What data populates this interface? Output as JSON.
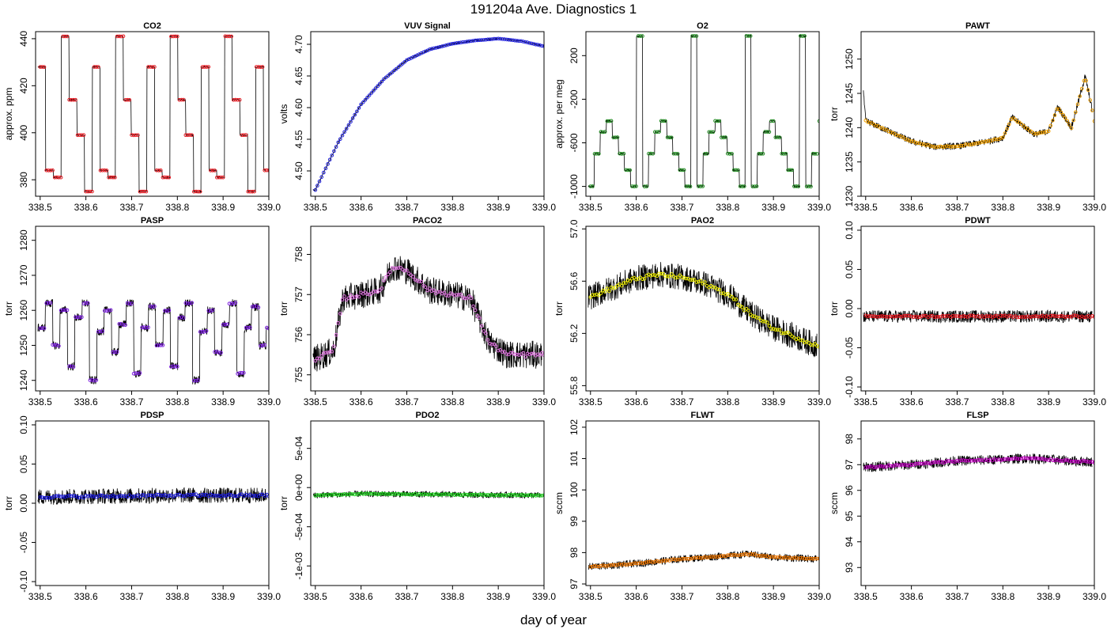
{
  "title": "191204a   Ave. Diagnostics 1",
  "xlabel": "day of year",
  "chart_data": [
    {
      "type": "line",
      "title": "CO2",
      "ylabel": "approx. ppm",
      "xlim": [
        338.49,
        339.0
      ],
      "ylim": [
        373,
        443
      ],
      "xticks": [
        338.5,
        338.6,
        338.7,
        338.8,
        338.9,
        339.0
      ],
      "xtick_labels": [
        "338.5",
        "338.6",
        "338.7",
        "338.8",
        "338.9",
        "339.0"
      ],
      "yticks": [
        380,
        400,
        420,
        440
      ],
      "ytick_labels": [
        "380",
        "400",
        "420",
        "440"
      ],
      "point_color": "#e8171f",
      "mode": "steps",
      "levels": [
        428,
        384,
        381,
        441,
        414,
        399,
        375,
        428,
        384,
        381,
        441,
        414,
        399,
        375,
        428,
        384,
        381,
        441,
        414,
        399,
        375,
        428,
        384,
        381,
        441,
        414,
        399,
        375,
        428,
        384
      ],
      "step": 0.017,
      "noise": 0.3
    },
    {
      "type": "line",
      "title": "VUV Signal",
      "ylabel": "volts",
      "xlim": [
        338.49,
        339.0
      ],
      "ylim": [
        4.46,
        4.72
      ],
      "xticks": [
        338.5,
        338.6,
        338.7,
        338.8,
        338.9,
        339.0
      ],
      "xtick_labels": [
        "338.5",
        "338.6",
        "338.7",
        "338.8",
        "338.9",
        "339.0"
      ],
      "yticks": [
        4.5,
        4.55,
        4.6,
        4.65,
        4.7
      ],
      "ytick_labels": [
        "4.50",
        "4.55",
        "4.60",
        "4.65",
        "4.70"
      ],
      "point_color": "#1a1adc",
      "mode": "curve",
      "curve": [
        [
          338.5,
          4.47
        ],
        [
          338.55,
          4.545
        ],
        [
          338.6,
          4.605
        ],
        [
          338.65,
          4.645
        ],
        [
          338.7,
          4.675
        ],
        [
          338.75,
          4.692
        ],
        [
          338.8,
          4.701
        ],
        [
          338.85,
          4.706
        ],
        [
          338.9,
          4.709
        ],
        [
          338.95,
          4.705
        ],
        [
          339.0,
          4.697
        ]
      ],
      "noise": 0.001
    },
    {
      "type": "line",
      "title": "O2",
      "ylabel": "approx. per meg",
      "xlim": [
        338.49,
        339.0
      ],
      "ylim": [
        -1090,
        420
      ],
      "xticks": [
        338.5,
        338.6,
        338.7,
        338.8,
        338.9,
        339.0
      ],
      "xtick_labels": [
        "338.5",
        "338.6",
        "338.7",
        "338.8",
        "338.9",
        "339.0"
      ],
      "yticks": [
        -1000,
        -600,
        -200,
        200
      ],
      "ytick_labels": [
        "-1000",
        "-600",
        "-200",
        "200"
      ],
      "point_color": "#1e8a1e",
      "mode": "steps",
      "levels": [
        -1000,
        -700,
        -500,
        -400,
        -550,
        -700,
        -850,
        -1000,
        380,
        -1000,
        -700,
        -500,
        -400,
        -550,
        -700,
        -850,
        -1000,
        380,
        -1000,
        -700,
        -500,
        -400,
        -550,
        -700,
        -850,
        -1000,
        380,
        -1000,
        -700,
        -500,
        -400,
        -550,
        -700,
        -850,
        -1000,
        380,
        -1000,
        -700,
        -400
      ],
      "step": 0.0132,
      "noise": 8
    },
    {
      "type": "line",
      "title": "PAWT",
      "ylabel": "torr",
      "xlim": [
        338.49,
        339.0
      ],
      "ylim": [
        1230,
        1254
      ],
      "xticks": [
        338.5,
        338.6,
        338.7,
        338.8,
        338.9,
        339.0
      ],
      "xtick_labels": [
        "338.5",
        "338.6",
        "338.7",
        "338.8",
        "338.9",
        "339.0"
      ],
      "yticks": [
        1230,
        1235,
        1240,
        1245,
        1250
      ],
      "ytick_labels": [
        "1230",
        "1235",
        "1240",
        "1245",
        "1250"
      ],
      "point_color": "#f0a000",
      "mode": "curve",
      "curve": [
        [
          338.493,
          1247
        ],
        [
          338.5,
          1241
        ],
        [
          338.55,
          1239.5
        ],
        [
          338.6,
          1238
        ],
        [
          338.65,
          1237.2
        ],
        [
          338.7,
          1237.3
        ],
        [
          338.75,
          1237.8
        ],
        [
          338.8,
          1238.5
        ],
        [
          338.82,
          1241.5
        ],
        [
          338.85,
          1240
        ],
        [
          338.87,
          1239
        ],
        [
          338.9,
          1239.5
        ],
        [
          338.92,
          1243
        ],
        [
          338.95,
          1240
        ],
        [
          338.98,
          1247.5
        ],
        [
          339.0,
          1241
        ]
      ],
      "noise": 0.5
    },
    {
      "type": "line",
      "title": "PASP",
      "ylabel": "torr",
      "xlim": [
        338.49,
        339.0
      ],
      "ylim": [
        1237,
        1284
      ],
      "xticks": [
        338.5,
        338.6,
        338.7,
        338.8,
        338.9,
        339.0
      ],
      "xtick_labels": [
        "338.5",
        "338.6",
        "338.7",
        "338.8",
        "338.9",
        "339.0"
      ],
      "yticks": [
        1240,
        1250,
        1260,
        1270,
        1280
      ],
      "ytick_labels": [
        "1240",
        "1250",
        "1260",
        "1270",
        "1280"
      ],
      "point_color": "#7a1ae0",
      "mode": "steps",
      "levels": [
        1255,
        1262,
        1250,
        1260,
        1244,
        1258,
        1262,
        1240,
        1254,
        1260,
        1248,
        1256,
        1262,
        1242,
        1255,
        1261,
        1250,
        1260,
        1244,
        1258,
        1262,
        1240,
        1254,
        1260,
        1248,
        1256,
        1262,
        1242,
        1255,
        1261,
        1250,
        1255
      ],
      "step": 0.0161,
      "noise": 1.2
    },
    {
      "type": "line",
      "title": "PACO2",
      "ylabel": "torr",
      "xlim": [
        338.49,
        339.0
      ],
      "ylim": [
        754.6,
        758.7
      ],
      "xticks": [
        338.5,
        338.6,
        338.7,
        338.8,
        338.9,
        339.0
      ],
      "xtick_labels": [
        "338.5",
        "338.6",
        "338.7",
        "338.8",
        "338.9",
        "339.0"
      ],
      "yticks": [
        755,
        756,
        757,
        758
      ],
      "ytick_labels": [
        "755",
        "756",
        "757",
        "758"
      ],
      "point_color": "#e070e0",
      "mode": "curve",
      "curve": [
        [
          338.5,
          755.4
        ],
        [
          338.54,
          755.6
        ],
        [
          338.56,
          756.9
        ],
        [
          338.6,
          757.0
        ],
        [
          338.64,
          757.1
        ],
        [
          338.67,
          757.7
        ],
        [
          338.7,
          757.6
        ],
        [
          338.75,
          757.1
        ],
        [
          338.8,
          757.0
        ],
        [
          338.84,
          756.9
        ],
        [
          338.88,
          755.8
        ],
        [
          338.92,
          755.5
        ],
        [
          339.0,
          755.5
        ]
      ],
      "noise": 0.35
    },
    {
      "type": "line",
      "title": "PAO2",
      "ylabel": "torr",
      "xlim": [
        338.49,
        339.0
      ],
      "ylim": [
        55.76,
        57.02
      ],
      "xticks": [
        338.5,
        338.6,
        338.7,
        338.8,
        338.9,
        339.0
      ],
      "xtick_labels": [
        "338.5",
        "338.6",
        "338.7",
        "338.8",
        "338.9",
        "339.0"
      ],
      "yticks": [
        55.8,
        56.2,
        56.6,
        57.0
      ],
      "ytick_labels": [
        "55.8",
        "56.2",
        "56.6",
        "57.0"
      ],
      "point_color": "#f0f000",
      "mode": "curve",
      "curve": [
        [
          338.5,
          56.48
        ],
        [
          338.55,
          56.55
        ],
        [
          338.6,
          56.62
        ],
        [
          338.65,
          56.65
        ],
        [
          338.7,
          56.63
        ],
        [
          338.75,
          56.58
        ],
        [
          338.8,
          56.5
        ],
        [
          338.85,
          56.35
        ],
        [
          338.9,
          56.24
        ],
        [
          338.95,
          56.17
        ],
        [
          339.0,
          56.1
        ]
      ],
      "noise": 0.1
    },
    {
      "type": "line",
      "title": "PDWT",
      "ylabel": "torr",
      "xlim": [
        338.49,
        339.0
      ],
      "ylim": [
        -0.105,
        0.105
      ],
      "xticks": [
        338.5,
        338.6,
        338.7,
        338.8,
        338.9,
        339.0
      ],
      "xtick_labels": [
        "338.5",
        "338.6",
        "338.7",
        "338.8",
        "338.9",
        "339.0"
      ],
      "yticks": [
        -0.1,
        -0.05,
        0,
        0.05,
        0.1
      ],
      "ytick_labels": [
        "-0.10",
        "-0.05",
        "0.00",
        "0.05",
        "0.10"
      ],
      "point_color": "#e8171f",
      "mode": "curve",
      "curve": [
        [
          338.5,
          -0.01
        ],
        [
          339.0,
          -0.01
        ]
      ],
      "noise": 0.008
    },
    {
      "type": "line",
      "title": "PDSP",
      "ylabel": "torr",
      "xlim": [
        338.49,
        339.0
      ],
      "ylim": [
        -0.105,
        0.105
      ],
      "xticks": [
        338.5,
        338.6,
        338.7,
        338.8,
        338.9,
        339.0
      ],
      "xtick_labels": [
        "338.5",
        "338.6",
        "338.7",
        "338.8",
        "338.9",
        "339.0"
      ],
      "yticks": [
        -0.1,
        -0.05,
        0,
        0.05,
        0.1
      ],
      "ytick_labels": [
        "-0.10",
        "-0.05",
        "0.00",
        "0.05",
        "0.10"
      ],
      "point_color": "#1a1adc",
      "mode": "curve",
      "curve": [
        [
          338.5,
          0.008
        ],
        [
          338.8,
          0.01
        ],
        [
          339.0,
          0.01
        ]
      ],
      "noise": 0.01
    },
    {
      "type": "line",
      "title": "PDO2",
      "ylabel": "torr",
      "xlim": [
        338.49,
        339.0
      ],
      "ylim": [
        -0.00125,
        0.00085
      ],
      "xticks": [
        338.5,
        338.6,
        338.7,
        338.8,
        338.9,
        339.0
      ],
      "xtick_labels": [
        "338.5",
        "338.6",
        "338.7",
        "338.8",
        "338.9",
        "339.0"
      ],
      "yticks": [
        -0.001,
        -0.0005,
        0,
        0.0005
      ],
      "ytick_labels": [
        "-1e-03",
        "-5e-04",
        "0e+00",
        "5e-04"
      ],
      "point_color": "#1ed21e",
      "mode": "curve",
      "curve": [
        [
          338.5,
          -0.0001
        ],
        [
          338.6,
          -8e-05
        ],
        [
          339.0,
          -0.0001
        ]
      ],
      "noise": 4e-05
    },
    {
      "type": "line",
      "title": "FLWT",
      "ylabel": "sccm",
      "xlim": [
        338.49,
        339.0
      ],
      "ylim": [
        96.95,
        102.2
      ],
      "xticks": [
        338.5,
        338.6,
        338.7,
        338.8,
        338.9,
        339.0
      ],
      "xtick_labels": [
        "338.5",
        "338.6",
        "338.7",
        "338.8",
        "338.9",
        "339.0"
      ],
      "yticks": [
        97,
        98,
        99,
        100,
        101,
        102
      ],
      "ytick_labels": [
        "97",
        "98",
        "99",
        "100",
        "101",
        "102"
      ],
      "point_color": "#f07800",
      "mode": "curve",
      "curve": [
        [
          338.5,
          97.55
        ],
        [
          338.6,
          97.65
        ],
        [
          338.7,
          97.8
        ],
        [
          338.8,
          97.9
        ],
        [
          338.85,
          97.95
        ],
        [
          338.9,
          97.85
        ],
        [
          339.0,
          97.8
        ]
      ],
      "noise": 0.12
    },
    {
      "type": "line",
      "title": "FLSP",
      "ylabel": "sccm",
      "xlim": [
        338.49,
        339.0
      ],
      "ylim": [
        92.3,
        98.7
      ],
      "xticks": [
        338.5,
        338.6,
        338.7,
        338.8,
        338.9,
        339.0
      ],
      "xtick_labels": [
        "338.5",
        "338.6",
        "338.7",
        "338.8",
        "338.9",
        "339.0"
      ],
      "yticks": [
        93,
        94,
        95,
        96,
        97,
        98
      ],
      "ytick_labels": [
        "93",
        "94",
        "95",
        "96",
        "97",
        "98"
      ],
      "point_color": "#c000c0",
      "mode": "curve",
      "curve": [
        [
          338.5,
          96.9
        ],
        [
          338.6,
          97.0
        ],
        [
          338.7,
          97.15
        ],
        [
          338.8,
          97.2
        ],
        [
          338.85,
          97.25
        ],
        [
          338.9,
          97.2
        ],
        [
          339.0,
          97.1
        ]
      ],
      "noise": 0.2
    }
  ]
}
